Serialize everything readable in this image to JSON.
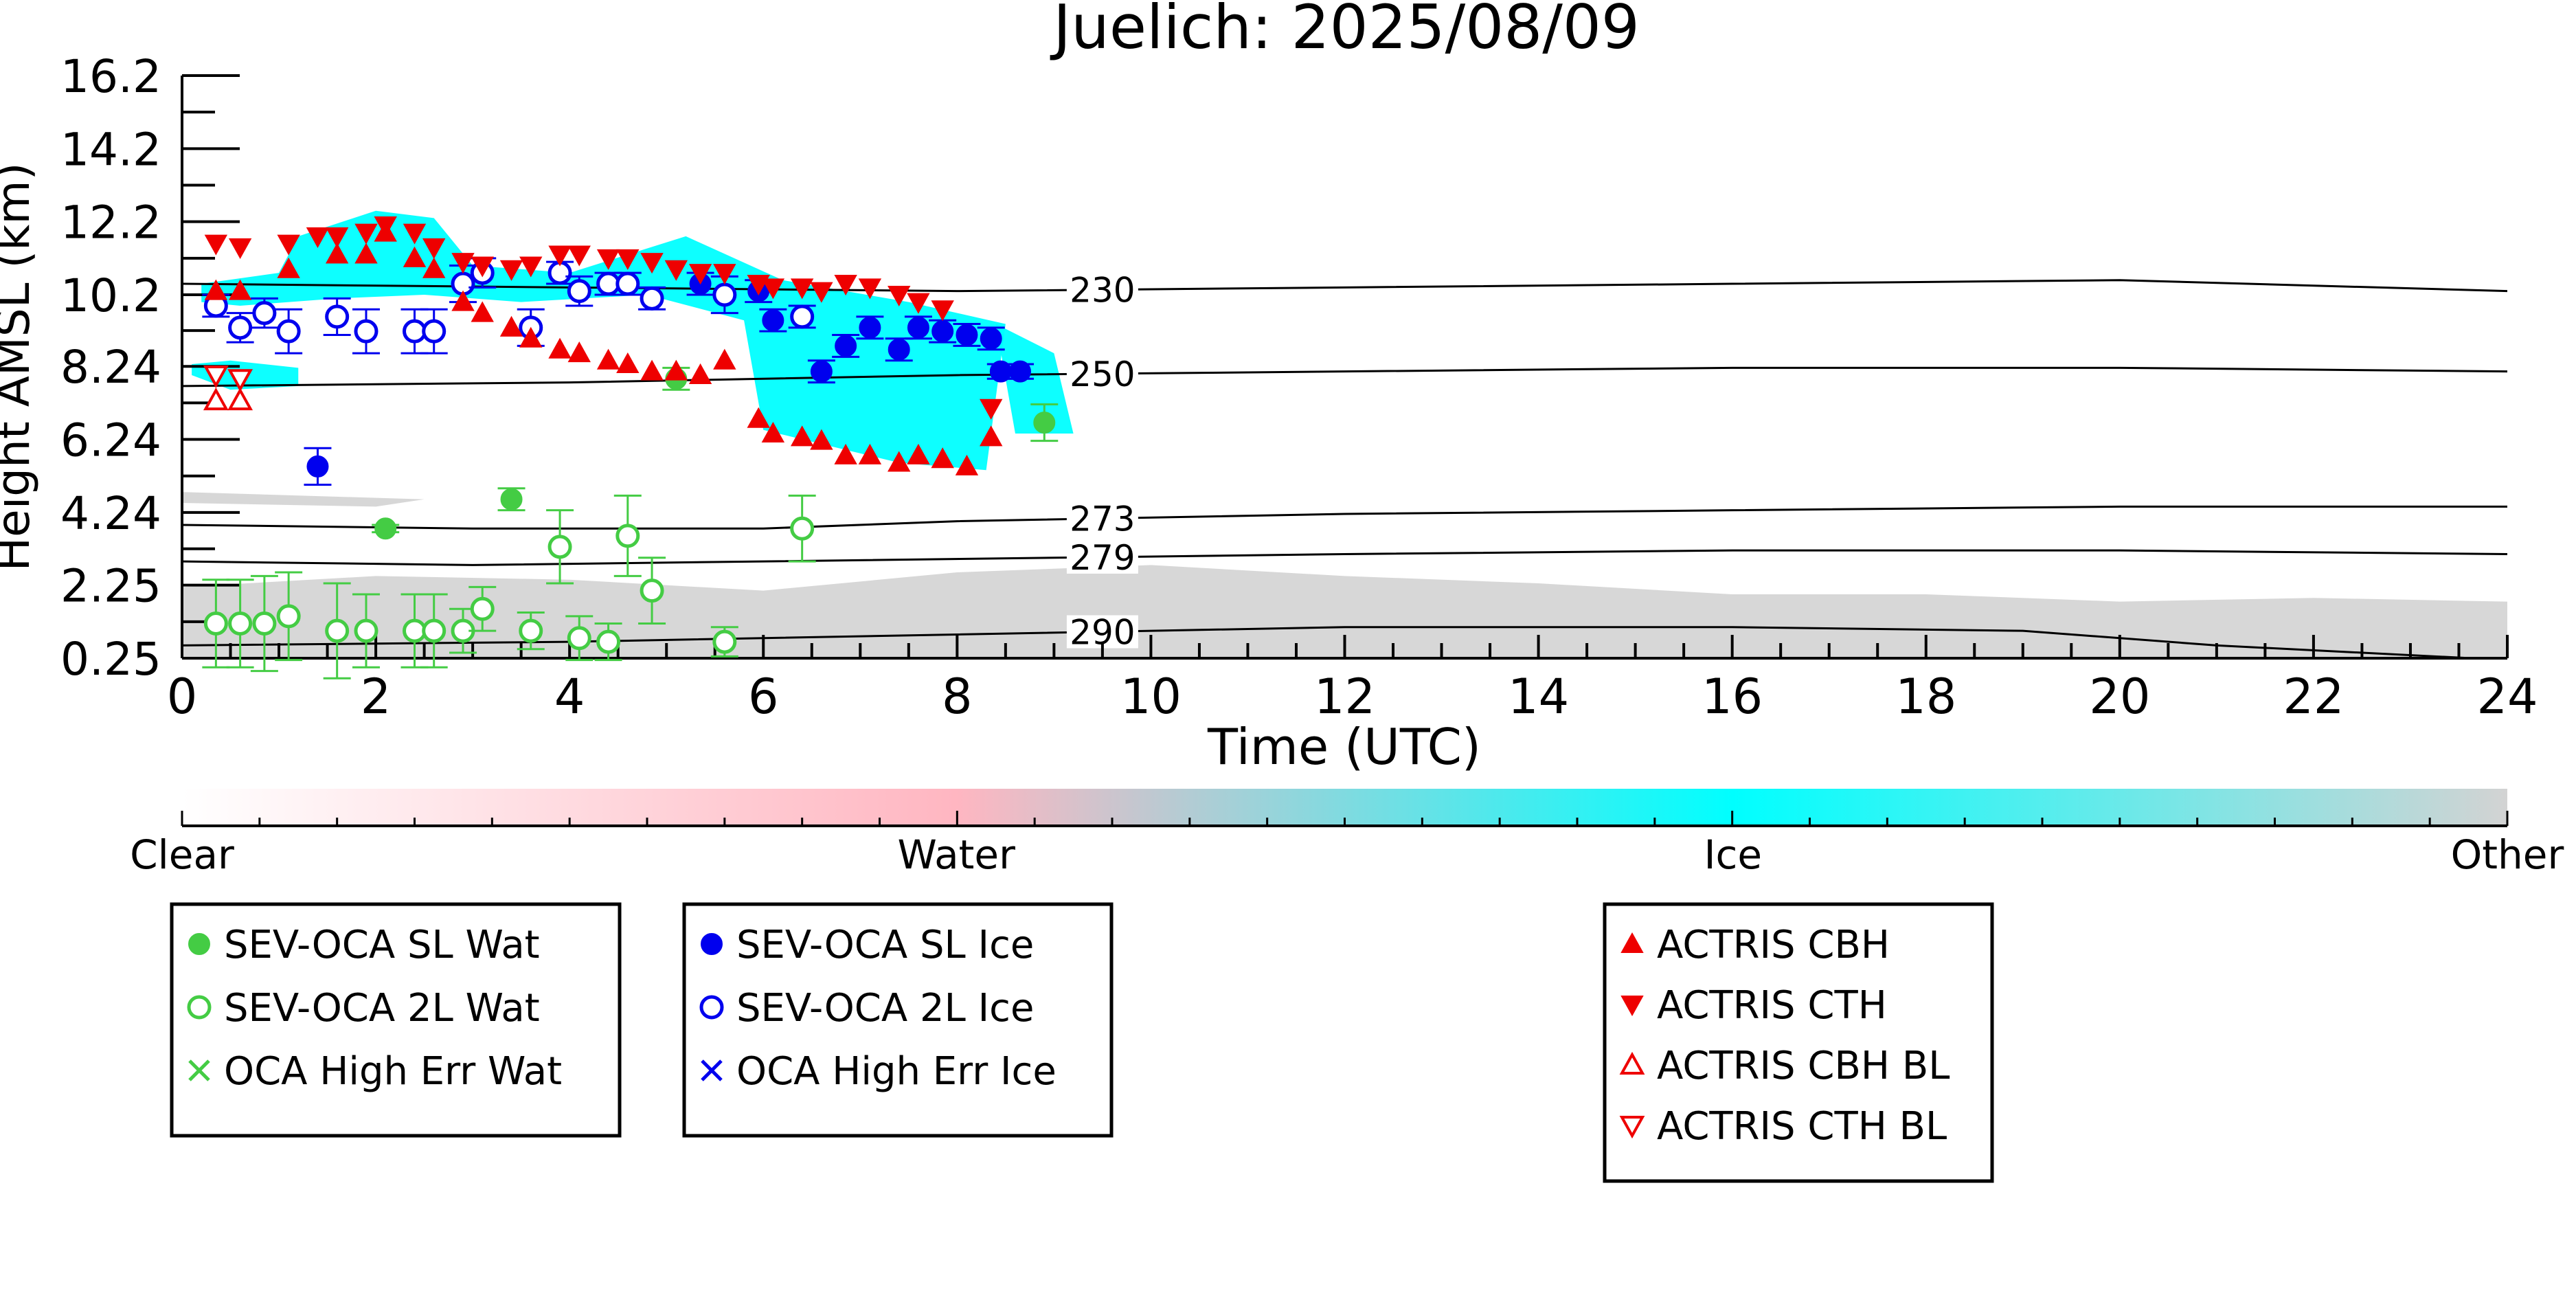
{
  "colors": {
    "clear": "#ffffff",
    "water": "#ffb6c1",
    "ice": "#00ffff",
    "other": "#d3d3d3",
    "sev_wat": "#44cc44",
    "sev_ice": "#0000ee",
    "actris": "#ee0000",
    "contour": "#000000"
  },
  "chart_data": {
    "type": "scatter",
    "title": "Juelich: 2025/08/09",
    "xlabel": "Time (UTC)",
    "ylabel": "Height AMSL (km)",
    "xlim": [
      0,
      24
    ],
    "ylim": [
      0.25,
      16.2
    ],
    "x_ticks": [
      0,
      2,
      4,
      6,
      8,
      10,
      12,
      14,
      16,
      18,
      20,
      22,
      24
    ],
    "x_tick_labels": [
      "0",
      "2",
      "4",
      "6",
      "8",
      "10",
      "12",
      "14",
      "16",
      "18",
      "20",
      "22",
      "24"
    ],
    "y_ticks": [
      0.25,
      2.25,
      4.24,
      6.24,
      8.24,
      10.2,
      12.2,
      14.2,
      16.2
    ],
    "y_tick_labels": [
      "0.25",
      "2.25",
      "4.24",
      "6.24",
      "8.24",
      "10.2",
      "12.2",
      "14.2",
      "16.2"
    ],
    "colorbar": {
      "labels": [
        "Clear",
        "Water",
        "Ice",
        "Other"
      ],
      "positions": [
        0,
        0.333,
        0.667,
        1.0
      ]
    },
    "temperature_contours": [
      {
        "label": "230",
        "label_x": 9.5,
        "points": [
          [
            0,
            10.5
          ],
          [
            4,
            10.4
          ],
          [
            8,
            10.3
          ],
          [
            12,
            10.4
          ],
          [
            16,
            10.5
          ],
          [
            20,
            10.6
          ],
          [
            24,
            10.3
          ]
        ]
      },
      {
        "label": "250",
        "label_x": 9.5,
        "points": [
          [
            0,
            7.7
          ],
          [
            4,
            7.8
          ],
          [
            8,
            8.0
          ],
          [
            12,
            8.1
          ],
          [
            16,
            8.2
          ],
          [
            20,
            8.2
          ],
          [
            24,
            8.1
          ]
        ]
      },
      {
        "label": "273",
        "label_x": 9.5,
        "points": [
          [
            0,
            3.9
          ],
          [
            3,
            3.8
          ],
          [
            6,
            3.8
          ],
          [
            8,
            4.0
          ],
          [
            12,
            4.2
          ],
          [
            16,
            4.3
          ],
          [
            20,
            4.4
          ],
          [
            24,
            4.4
          ]
        ]
      },
      {
        "label": "279",
        "label_x": 9.5,
        "points": [
          [
            0,
            2.9
          ],
          [
            3,
            2.8
          ],
          [
            6,
            2.9
          ],
          [
            9,
            3.0
          ],
          [
            12,
            3.1
          ],
          [
            16,
            3.2
          ],
          [
            20,
            3.2
          ],
          [
            24,
            3.1
          ]
        ]
      },
      {
        "label": "290",
        "label_x": 9.5,
        "points": [
          [
            0,
            0.6
          ],
          [
            4,
            0.7
          ],
          [
            8,
            0.9
          ],
          [
            12,
            1.1
          ],
          [
            16,
            1.1
          ],
          [
            19,
            1.0
          ],
          [
            21,
            0.6
          ],
          [
            24,
            0.2
          ]
        ]
      }
    ],
    "cloudnet_regions": [
      {
        "type": "ice",
        "points": [
          [
            0.1,
            8.0
          ],
          [
            0.5,
            7.6
          ],
          [
            1.2,
            7.7
          ],
          [
            1.2,
            8.2
          ],
          [
            0.5,
            8.4
          ],
          [
            0.1,
            8.3
          ]
        ]
      },
      {
        "type": "ice",
        "points": [
          [
            0.2,
            10.5
          ],
          [
            1.0,
            10.8
          ],
          [
            1.2,
            11.8
          ],
          [
            2.0,
            12.5
          ],
          [
            2.6,
            12.3
          ],
          [
            3.0,
            11.0
          ],
          [
            4.0,
            10.8
          ],
          [
            5.2,
            11.8
          ],
          [
            6.2,
            10.6
          ],
          [
            7.5,
            10.0
          ],
          [
            8.5,
            9.4
          ],
          [
            8.3,
            5.4
          ],
          [
            7.4,
            5.6
          ],
          [
            6.0,
            6.5
          ],
          [
            5.8,
            9.5
          ],
          [
            4.8,
            10.2
          ],
          [
            3.5,
            10.0
          ],
          [
            2.5,
            10.2
          ],
          [
            1.6,
            10.1
          ],
          [
            0.6,
            9.9
          ],
          [
            0.2,
            10.0
          ]
        ]
      },
      {
        "type": "ice",
        "points": [
          [
            8.4,
            9.4
          ],
          [
            9.0,
            8.6
          ],
          [
            9.2,
            6.4
          ],
          [
            8.6,
            6.4
          ]
        ]
      },
      {
        "type": "other",
        "points": [
          [
            0,
            0.25
          ],
          [
            0,
            2.2
          ],
          [
            2,
            2.5
          ],
          [
            4,
            2.4
          ],
          [
            6,
            2.1
          ],
          [
            8,
            2.6
          ],
          [
            10,
            2.8
          ],
          [
            12,
            2.5
          ],
          [
            14,
            2.3
          ],
          [
            16,
            2.0
          ],
          [
            18,
            2.0
          ],
          [
            20,
            1.8
          ],
          [
            22,
            1.9
          ],
          [
            24,
            1.8
          ],
          [
            24,
            0.25
          ]
        ]
      },
      {
        "type": "other",
        "points": [
          [
            0,
            4.5
          ],
          [
            2,
            4.4
          ],
          [
            2.5,
            4.6
          ],
          [
            0,
            4.8
          ]
        ]
      }
    ],
    "series": [
      {
        "name": "SEV-OCA SL Wat",
        "marker": "filled-circle",
        "points": [
          {
            "x": 2.1,
            "y": 3.8,
            "err": 0.1
          },
          {
            "x": 3.4,
            "y": 4.6,
            "err": 0.3
          },
          {
            "x": 5.1,
            "y": 7.9,
            "err": 0.3
          },
          {
            "x": 8.9,
            "y": 6.7,
            "err": 0.5
          }
        ]
      },
      {
        "name": "SEV-OCA 2L Wat",
        "marker": "open-circle",
        "points": [
          {
            "x": 0.35,
            "y": 1.2,
            "err": 1.2
          },
          {
            "x": 0.6,
            "y": 1.2,
            "err": 1.2
          },
          {
            "x": 0.85,
            "y": 1.2,
            "err": 1.3
          },
          {
            "x": 1.1,
            "y": 1.4,
            "err": 1.2
          },
          {
            "x": 1.6,
            "y": 1.0,
            "err": 1.3
          },
          {
            "x": 1.9,
            "y": 1.0,
            "err": 1.0
          },
          {
            "x": 2.4,
            "y": 1.0,
            "err": 1.0
          },
          {
            "x": 2.6,
            "y": 1.0,
            "err": 1.0
          },
          {
            "x": 2.9,
            "y": 1.0,
            "err": 0.6
          },
          {
            "x": 3.1,
            "y": 1.6,
            "err": 0.6
          },
          {
            "x": 3.6,
            "y": 1.0,
            "err": 0.5
          },
          {
            "x": 3.9,
            "y": 3.3,
            "err": 1.0
          },
          {
            "x": 4.1,
            "y": 0.8,
            "err": 0.6
          },
          {
            "x": 4.4,
            "y": 0.7,
            "err": 0.5
          },
          {
            "x": 4.6,
            "y": 3.6,
            "err": 1.1
          },
          {
            "x": 4.85,
            "y": 2.1,
            "err": 0.9
          },
          {
            "x": 5.6,
            "y": 0.7,
            "err": 0.4
          },
          {
            "x": 6.4,
            "y": 3.8,
            "err": 0.9
          }
        ]
      },
      {
        "name": "OCA High Err Wat",
        "marker": "x",
        "points": []
      },
      {
        "name": "SEV-OCA SL Ice",
        "marker": "filled-circle",
        "points": [
          {
            "x": 1.4,
            "y": 5.5,
            "err": 0.5
          },
          {
            "x": 5.35,
            "y": 10.5,
            "err": 0.3
          },
          {
            "x": 5.95,
            "y": 10.3,
            "err": 0.3
          },
          {
            "x": 6.1,
            "y": 9.5,
            "err": 0.3
          },
          {
            "x": 6.6,
            "y": 8.1,
            "err": 0.3
          },
          {
            "x": 6.85,
            "y": 8.8,
            "err": 0.3
          },
          {
            "x": 7.1,
            "y": 9.3,
            "err": 0.3
          },
          {
            "x": 7.4,
            "y": 8.7,
            "err": 0.3
          },
          {
            "x": 7.6,
            "y": 9.3,
            "err": 0.3
          },
          {
            "x": 7.85,
            "y": 9.2,
            "err": 0.3
          },
          {
            "x": 8.1,
            "y": 9.1,
            "err": 0.3
          },
          {
            "x": 8.35,
            "y": 9.0,
            "err": 0.3
          },
          {
            "x": 8.45,
            "y": 8.1,
            "err": 0.2
          },
          {
            "x": 8.65,
            "y": 8.1,
            "err": 0.2
          }
        ]
      },
      {
        "name": "SEV-OCA 2L Ice",
        "marker": "open-circle",
        "points": [
          {
            "x": 0.35,
            "y": 9.9,
            "err": 0.3
          },
          {
            "x": 0.6,
            "y": 9.3,
            "err": 0.4
          },
          {
            "x": 0.85,
            "y": 9.7,
            "err": 0.4
          },
          {
            "x": 1.1,
            "y": 9.2,
            "err": 0.6
          },
          {
            "x": 1.6,
            "y": 9.6,
            "err": 0.5
          },
          {
            "x": 1.9,
            "y": 9.2,
            "err": 0.6
          },
          {
            "x": 2.4,
            "y": 9.2,
            "err": 0.6
          },
          {
            "x": 2.6,
            "y": 9.2,
            "err": 0.6
          },
          {
            "x": 2.9,
            "y": 10.5,
            "err": 0.5
          },
          {
            "x": 3.1,
            "y": 10.8,
            "err": 0.4
          },
          {
            "x": 3.6,
            "y": 9.3,
            "err": 0.5
          },
          {
            "x": 3.9,
            "y": 10.8,
            "err": 0.3
          },
          {
            "x": 4.1,
            "y": 10.3,
            "err": 0.4
          },
          {
            "x": 4.4,
            "y": 10.5,
            "err": 0.3
          },
          {
            "x": 4.6,
            "y": 10.5,
            "err": 0.3
          },
          {
            "x": 4.85,
            "y": 10.1,
            "err": 0.3
          },
          {
            "x": 5.6,
            "y": 10.2,
            "err": 0.5
          },
          {
            "x": 6.4,
            "y": 9.6,
            "err": 0.3
          }
        ]
      },
      {
        "name": "OCA High Err Ice",
        "marker": "x",
        "points": []
      },
      {
        "name": "ACTRIS CBH",
        "marker": "triangle-up-filled",
        "points": [
          {
            "x": 0.35,
            "y": 10.3
          },
          {
            "x": 0.6,
            "y": 10.3
          },
          {
            "x": 1.1,
            "y": 10.9
          },
          {
            "x": 1.6,
            "y": 11.3
          },
          {
            "x": 1.9,
            "y": 11.3
          },
          {
            "x": 2.1,
            "y": 11.9
          },
          {
            "x": 2.4,
            "y": 11.2
          },
          {
            "x": 2.6,
            "y": 10.9
          },
          {
            "x": 2.9,
            "y": 10.0
          },
          {
            "x": 3.1,
            "y": 9.7
          },
          {
            "x": 3.4,
            "y": 9.3
          },
          {
            "x": 3.6,
            "y": 9.0
          },
          {
            "x": 3.9,
            "y": 8.7
          },
          {
            "x": 4.1,
            "y": 8.6
          },
          {
            "x": 4.4,
            "y": 8.4
          },
          {
            "x": 4.6,
            "y": 8.3
          },
          {
            "x": 4.85,
            "y": 8.1
          },
          {
            "x": 5.1,
            "y": 8.1
          },
          {
            "x": 5.35,
            "y": 8.0
          },
          {
            "x": 5.6,
            "y": 8.4
          },
          {
            "x": 5.95,
            "y": 6.8
          },
          {
            "x": 6.1,
            "y": 6.4
          },
          {
            "x": 6.4,
            "y": 6.3
          },
          {
            "x": 6.6,
            "y": 6.2
          },
          {
            "x": 6.85,
            "y": 5.8
          },
          {
            "x": 7.1,
            "y": 5.8
          },
          {
            "x": 7.4,
            "y": 5.6
          },
          {
            "x": 7.6,
            "y": 5.8
          },
          {
            "x": 7.85,
            "y": 5.7
          },
          {
            "x": 8.1,
            "y": 5.5
          },
          {
            "x": 8.35,
            "y": 6.3
          }
        ]
      },
      {
        "name": "ACTRIS CTH",
        "marker": "triangle-down-filled",
        "points": [
          {
            "x": 0.35,
            "y": 11.6
          },
          {
            "x": 0.6,
            "y": 11.5
          },
          {
            "x": 1.1,
            "y": 11.6
          },
          {
            "x": 1.4,
            "y": 11.8
          },
          {
            "x": 1.6,
            "y": 11.8
          },
          {
            "x": 1.9,
            "y": 11.9
          },
          {
            "x": 2.1,
            "y": 12.1
          },
          {
            "x": 2.4,
            "y": 11.9
          },
          {
            "x": 2.6,
            "y": 11.5
          },
          {
            "x": 2.9,
            "y": 11.1
          },
          {
            "x": 3.1,
            "y": 11.0
          },
          {
            "x": 3.4,
            "y": 10.9
          },
          {
            "x": 3.6,
            "y": 11.0
          },
          {
            "x": 3.9,
            "y": 11.3
          },
          {
            "x": 4.1,
            "y": 11.3
          },
          {
            "x": 4.4,
            "y": 11.2
          },
          {
            "x": 4.6,
            "y": 11.2
          },
          {
            "x": 4.85,
            "y": 11.1
          },
          {
            "x": 5.1,
            "y": 10.9
          },
          {
            "x": 5.35,
            "y": 10.8
          },
          {
            "x": 5.6,
            "y": 10.8
          },
          {
            "x": 5.95,
            "y": 10.5
          },
          {
            "x": 6.1,
            "y": 10.4
          },
          {
            "x": 6.4,
            "y": 10.4
          },
          {
            "x": 6.6,
            "y": 10.3
          },
          {
            "x": 6.85,
            "y": 10.5
          },
          {
            "x": 7.1,
            "y": 10.4
          },
          {
            "x": 7.4,
            "y": 10.2
          },
          {
            "x": 7.6,
            "y": 10.0
          },
          {
            "x": 7.85,
            "y": 9.8
          },
          {
            "x": 8.35,
            "y": 7.1
          }
        ]
      },
      {
        "name": "ACTRIS CBH BL",
        "marker": "triangle-up-open",
        "points": [
          {
            "x": 0.35,
            "y": 7.3
          },
          {
            "x": 0.6,
            "y": 7.3
          }
        ]
      },
      {
        "name": "ACTRIS CTH BL",
        "marker": "triangle-down-open",
        "points": [
          {
            "x": 0.35,
            "y": 8.0
          },
          {
            "x": 0.6,
            "y": 7.9
          }
        ]
      }
    ],
    "legend_groups": [
      [
        "SEV-OCA SL Wat",
        "SEV-OCA 2L Wat",
        "OCA High Err Wat"
      ],
      [
        "SEV-OCA SL Ice",
        "SEV-OCA 2L Ice",
        "OCA High Err Ice"
      ],
      [
        "ACTRIS CBH",
        "ACTRIS CTH",
        "ACTRIS CBH BL",
        "ACTRIS CTH BL"
      ]
    ]
  }
}
